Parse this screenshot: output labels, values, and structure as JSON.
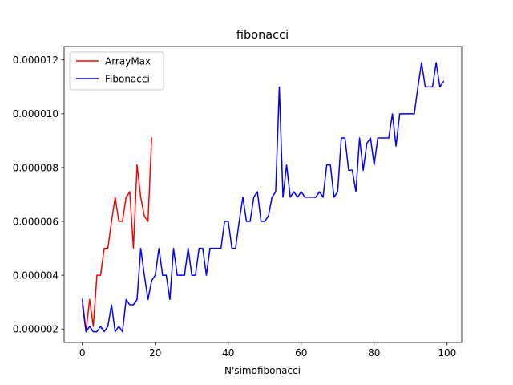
{
  "chart_data": {
    "type": "line",
    "title": "fibonacci",
    "xlabel": "N'simofibonacci",
    "ylabel": "",
    "xlim": [
      -5,
      104
    ],
    "ylim": [
      1.5e-06,
      1.25e-05
    ],
    "xticks": [
      0,
      20,
      40,
      60,
      80,
      100
    ],
    "xtick_labels": [
      "0",
      "20",
      "40",
      "60",
      "80",
      "100"
    ],
    "yticks": [
      2e-06,
      4e-06,
      6e-06,
      8e-06,
      1e-05,
      1.2e-05
    ],
    "ytick_labels": [
      "0.000002",
      "0.000004",
      "0.000006",
      "0.000008",
      "0.000010",
      "0.000012"
    ],
    "grid": false,
    "legend_position": "upper-left",
    "series": [
      {
        "name": "ArrayMax",
        "color": "#ff0000",
        "x": [
          0,
          1,
          2,
          3,
          4,
          5,
          6,
          7,
          8,
          9,
          10,
          11,
          12,
          13,
          14,
          15,
          16,
          17,
          18,
          19
        ],
        "y": [
          2.9e-06,
          1.9e-06,
          3.1e-06,
          2.1e-06,
          4e-06,
          4e-06,
          5e-06,
          5e-06,
          6e-06,
          6.9e-06,
          6e-06,
          6e-06,
          6.9e-06,
          7.1e-06,
          5e-06,
          8.1e-06,
          6.9e-06,
          6.2e-06,
          6e-06,
          9.1e-06
        ]
      },
      {
        "name": "Fibonacci",
        "color": "#0000ff",
        "x": [
          0,
          1,
          2,
          3,
          4,
          5,
          6,
          7,
          8,
          9,
          10,
          11,
          12,
          13,
          14,
          15,
          16,
          17,
          18,
          19,
          20,
          21,
          22,
          23,
          24,
          25,
          26,
          27,
          28,
          29,
          30,
          31,
          32,
          33,
          34,
          35,
          36,
          37,
          38,
          39,
          40,
          41,
          42,
          43,
          44,
          45,
          46,
          47,
          48,
          49,
          50,
          51,
          52,
          53,
          54,
          55,
          56,
          57,
          58,
          59,
          60,
          61,
          62,
          63,
          64,
          65,
          66,
          67,
          68,
          69,
          70,
          71,
          72,
          73,
          74,
          75,
          76,
          77,
          78,
          79,
          80,
          81,
          82,
          83,
          84,
          85,
          86,
          87,
          88,
          89,
          90,
          91,
          92,
          93,
          94,
          95,
          96,
          97,
          98,
          99
        ],
        "y": [
          3.1e-06,
          1.9e-06,
          2.1e-06,
          1.9e-06,
          1.9e-06,
          2.1e-06,
          1.9e-06,
          2.1e-06,
          2.9e-06,
          1.9e-06,
          2.1e-06,
          1.9e-06,
          3.1e-06,
          2.9e-06,
          2.9e-06,
          3.1e-06,
          5e-06,
          4e-06,
          3.1e-06,
          3.8e-06,
          4e-06,
          5e-06,
          4e-06,
          4e-06,
          3.1e-06,
          5e-06,
          4e-06,
          4e-06,
          4e-06,
          5e-06,
          4e-06,
          4e-06,
          5e-06,
          5e-06,
          4e-06,
          5e-06,
          5e-06,
          5e-06,
          5e-06,
          6e-06,
          6e-06,
          5e-06,
          5e-06,
          6e-06,
          6.9e-06,
          6e-06,
          6e-06,
          6.9e-06,
          7.1e-06,
          6e-06,
          6e-06,
          6.2e-06,
          6.9e-06,
          7.1e-06,
          1.1e-05,
          6.9e-06,
          8.1e-06,
          6.9e-06,
          7.1e-06,
          6.9e-06,
          7.1e-06,
          6.9e-06,
          6.9e-06,
          6.9e-06,
          6.9e-06,
          7.1e-06,
          6.9e-06,
          8.1e-06,
          8.1e-06,
          6.9e-06,
          7.1e-06,
          9.1e-06,
          9.1e-06,
          7.9e-06,
          7.9e-06,
          7.1e-06,
          9.1e-06,
          7.9e-06,
          8.9e-06,
          9.1e-06,
          8.1e-06,
          9.1e-06,
          9.1e-06,
          9.1e-06,
          9.1e-06,
          1e-05,
          8.8e-06,
          1e-05,
          1e-05,
          1e-05,
          1e-05,
          1e-05,
          1.1e-05,
          1.19e-05,
          1.1e-05,
          1.1e-05,
          1.1e-05,
          1.19e-05,
          1.1e-05,
          1.12e-05
        ]
      }
    ]
  }
}
